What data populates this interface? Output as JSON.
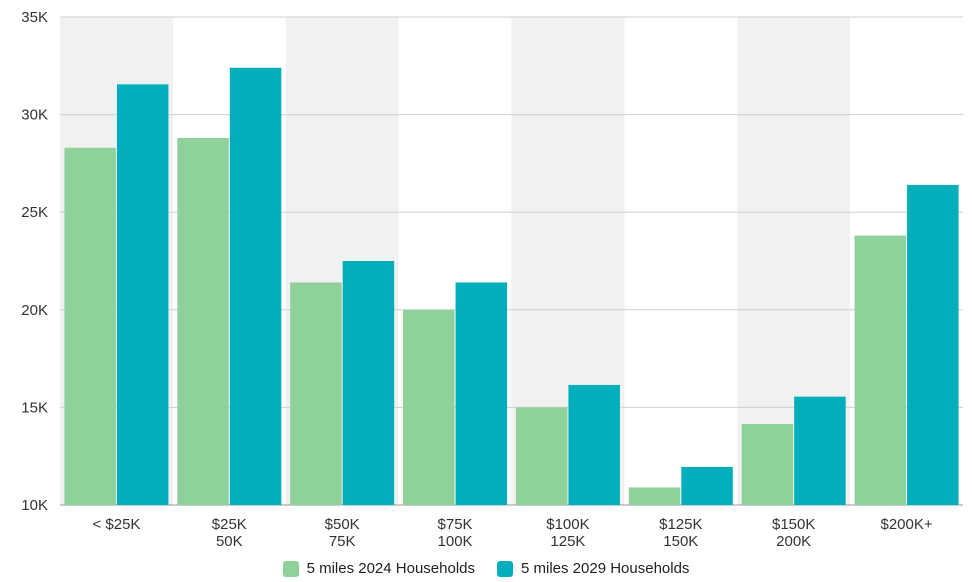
{
  "chart_data": {
    "type": "bar",
    "title": "",
    "xlabel": "",
    "ylabel": "",
    "ylim": [
      10000,
      35000
    ],
    "yticks": [
      10000,
      15000,
      20000,
      25000,
      30000,
      35000
    ],
    "ytick_labels": [
      "10K",
      "15K",
      "20K",
      "25K",
      "30K",
      "35K"
    ],
    "categories": [
      [
        "< $25K"
      ],
      [
        "$25K",
        "50K"
      ],
      [
        "$50K",
        "75K"
      ],
      [
        "$75K",
        "100K"
      ],
      [
        "$100K",
        "125K"
      ],
      [
        "$125K",
        "150K"
      ],
      [
        "$150K",
        "200K"
      ],
      [
        "$200K+"
      ]
    ],
    "series": [
      {
        "name": "5 miles 2024 Households",
        "color": "#8fd19a",
        "values": [
          28300,
          28800,
          21400,
          20000,
          15000,
          10900,
          14150,
          23800
        ]
      },
      {
        "name": "5 miles 2029 Households",
        "color": "#00afbb",
        "values": [
          31550,
          32400,
          22500,
          21400,
          16150,
          11950,
          15550,
          26400
        ]
      }
    ],
    "grid": true,
    "band_color": "#f1f1f1",
    "legend": "bottom-center"
  }
}
